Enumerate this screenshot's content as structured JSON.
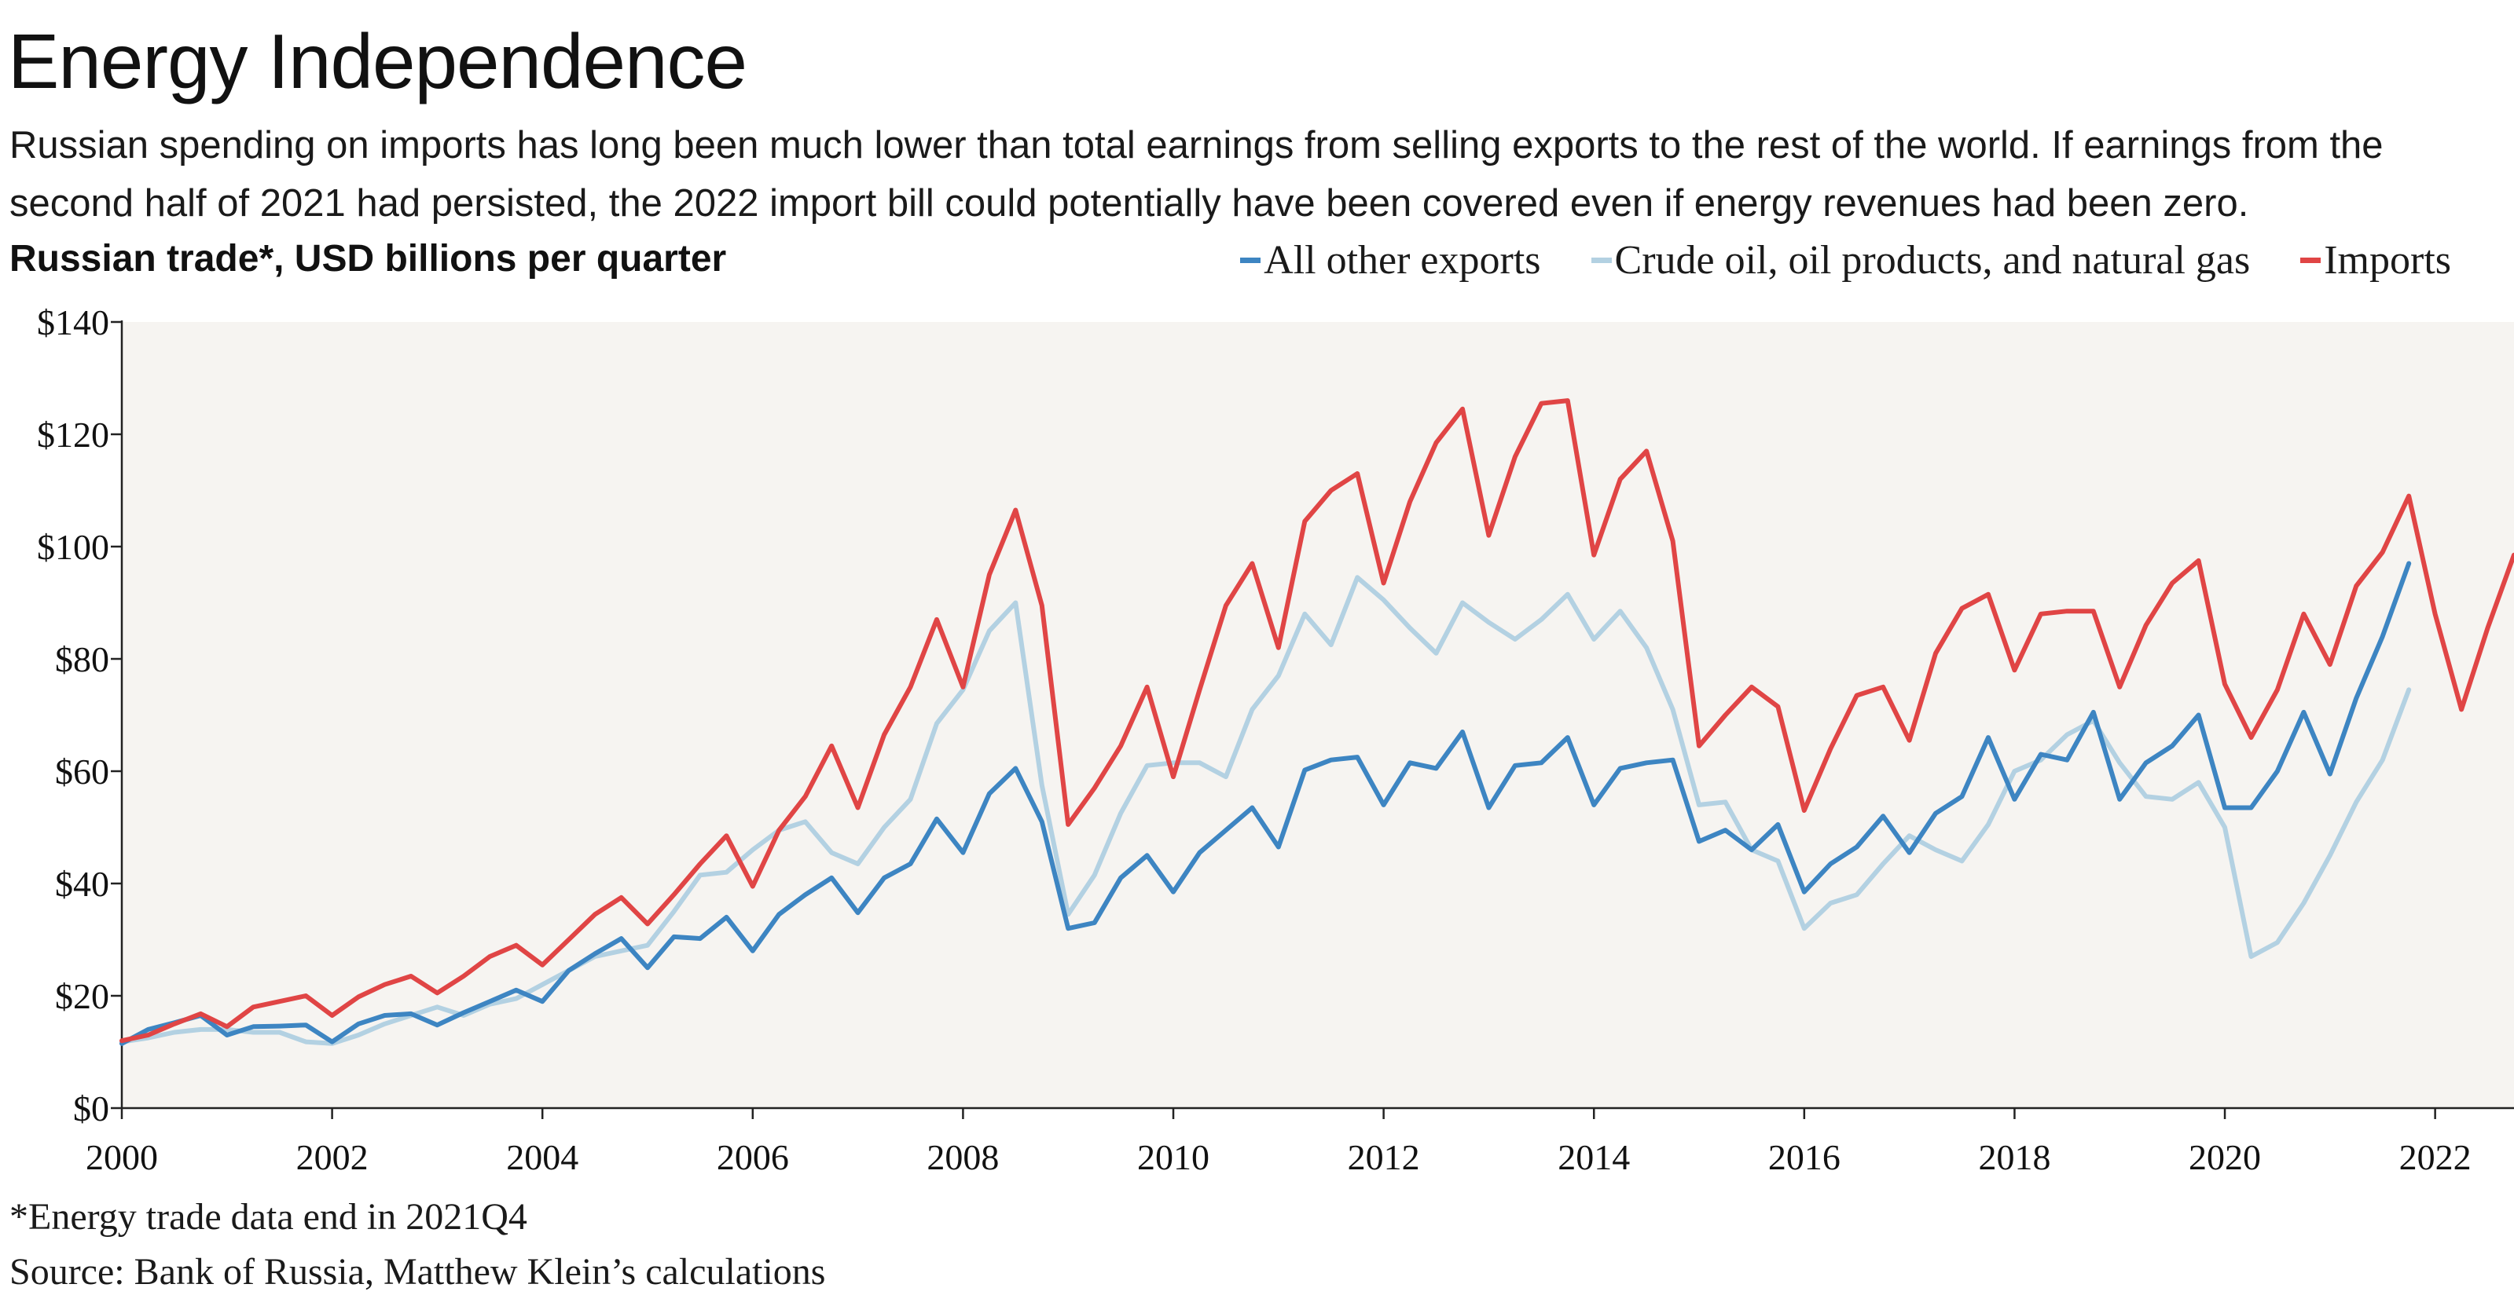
{
  "title": "Energy Independence",
  "subtitle": "Russian spending on imports has long been much lower than total earnings from selling exports to the rest of the world. If earnings from the second half of 2021 had persisted, the 2022 import bill could potentially have been covered even if energy revenues had been zero.",
  "units_label": "Russian trade*, USD billions per quarter",
  "footnote": "*Energy trade data end in 2021Q4",
  "source": "Source: Bank of Russia, Matthew Klein’s calculations",
  "colors": {
    "background": "#f6f4f1",
    "all_other_exports": "#3d85c2",
    "energy": "#b3d1e2",
    "imports": "#e04545"
  },
  "chart_data": {
    "type": "line",
    "xlabel": "",
    "ylabel": "",
    "xlim": [
      2000,
      2022.75
    ],
    "ylim": [
      0,
      140
    ],
    "x_ticks": [
      2000,
      2002,
      2004,
      2006,
      2008,
      2010,
      2012,
      2014,
      2016,
      2018,
      2020,
      2022
    ],
    "y_ticks": [
      0,
      20,
      40,
      60,
      80,
      100,
      120,
      140
    ],
    "y_tick_labels": [
      "$0",
      "$20",
      "$40",
      "$60",
      "$80",
      "$100",
      "$120",
      "$140"
    ],
    "legend_position": "top-right",
    "grid": false,
    "x_start": 2000,
    "x_step": 0.25,
    "series": [
      {
        "name": "All other exports",
        "color": "#3d85c2",
        "values": [
          11.5,
          14.0,
          15.2,
          16.5,
          13.0,
          14.5,
          14.6,
          14.8,
          11.8,
          15.0,
          16.5,
          16.8,
          14.8,
          17.0,
          19.0,
          21.0,
          19.0,
          24.5,
          27.5,
          30.2,
          25.0,
          30.5,
          30.2,
          34.0,
          28.0,
          34.5,
          38.0,
          41.0,
          34.8,
          41.0,
          43.5,
          51.5,
          45.5,
          56.0,
          60.5,
          51.0,
          32.0,
          33.0,
          41.0,
          45.0,
          38.5,
          45.5,
          49.5,
          53.5,
          46.5,
          60.2,
          62.0,
          62.5,
          54.0,
          61.5,
          60.5,
          67.0,
          53.5,
          61.0,
          61.5,
          66.0,
          54.0,
          60.5,
          61.5,
          62.0,
          47.5,
          49.5,
          46.0,
          50.5,
          38.5,
          43.5,
          46.5,
          52.0,
          45.5,
          52.5,
          55.5,
          66.0,
          55.0,
          63.0,
          62.0,
          70.5,
          55.0,
          61.5,
          64.5,
          70.0,
          53.5,
          53.5,
          60.0,
          70.5,
          59.5,
          73.0,
          84.0,
          97.0
        ]
      },
      {
        "name": "Crude oil, oil products, and natural gas",
        "color": "#b3d1e2",
        "values": [
          11.8,
          12.5,
          13.5,
          14.0,
          14.0,
          13.5,
          13.5,
          11.8,
          11.5,
          13.0,
          15.0,
          16.5,
          18.0,
          16.5,
          18.5,
          19.5,
          22.0,
          24.5,
          27.0,
          28.0,
          29.0,
          35.0,
          41.5,
          42.0,
          46.0,
          49.5,
          51.0,
          45.5,
          43.5,
          50.0,
          55.0,
          68.5,
          74.5,
          85.0,
          90.0,
          57.5,
          34.5,
          41.5,
          52.5,
          61.0,
          61.5,
          61.5,
          59.0,
          71.0,
          77.0,
          88.0,
          82.5,
          94.5,
          90.5,
          85.5,
          81.0,
          90.0,
          86.5,
          83.5,
          87.0,
          91.5,
          83.5,
          88.5,
          82.0,
          71.0,
          54.0,
          54.5,
          46.0,
          44.0,
          32.0,
          36.5,
          38.0,
          43.5,
          48.5,
          46.0,
          44.0,
          50.5,
          60.0,
          62.0,
          66.5,
          69.0,
          61.5,
          55.5,
          55.0,
          58.0,
          50.0,
          27.0,
          29.5,
          36.5,
          45.0,
          54.5,
          62.0,
          74.5
        ]
      },
      {
        "name": "Imports",
        "color": "#e04545",
        "values": [
          12.0,
          13.0,
          15.0,
          16.8,
          14.5,
          18.0,
          19.0,
          20.0,
          16.5,
          19.8,
          22.0,
          23.5,
          20.5,
          23.5,
          27.0,
          29.0,
          25.5,
          30.0,
          34.5,
          37.5,
          32.8,
          38.0,
          43.5,
          48.5,
          39.5,
          49.5,
          55.5,
          64.5,
          53.5,
          66.5,
          75.0,
          87.0,
          75.0,
          95.0,
          106.5,
          89.5,
          50.5,
          57.0,
          64.5,
          75.0,
          59.0,
          74.5,
          89.5,
          97.0,
          82.0,
          104.5,
          110.0,
          113.0,
          93.5,
          108.0,
          118.5,
          124.5,
          102.0,
          116.0,
          125.5,
          126.0,
          98.5,
          112.0,
          117.0,
          101.0,
          64.5,
          70.0,
          75.0,
          71.5,
          53.0,
          64.0,
          73.5,
          75.0,
          65.5,
          81.0,
          89.0,
          91.5,
          78.0,
          88.0,
          88.5,
          88.5,
          75.0,
          86.0,
          93.5,
          97.5,
          75.5,
          66.0,
          74.5,
          88.0,
          79.0,
          93.0,
          99.0,
          109.0,
          88.0,
          71.0,
          85.5,
          98.5
        ]
      }
    ]
  }
}
